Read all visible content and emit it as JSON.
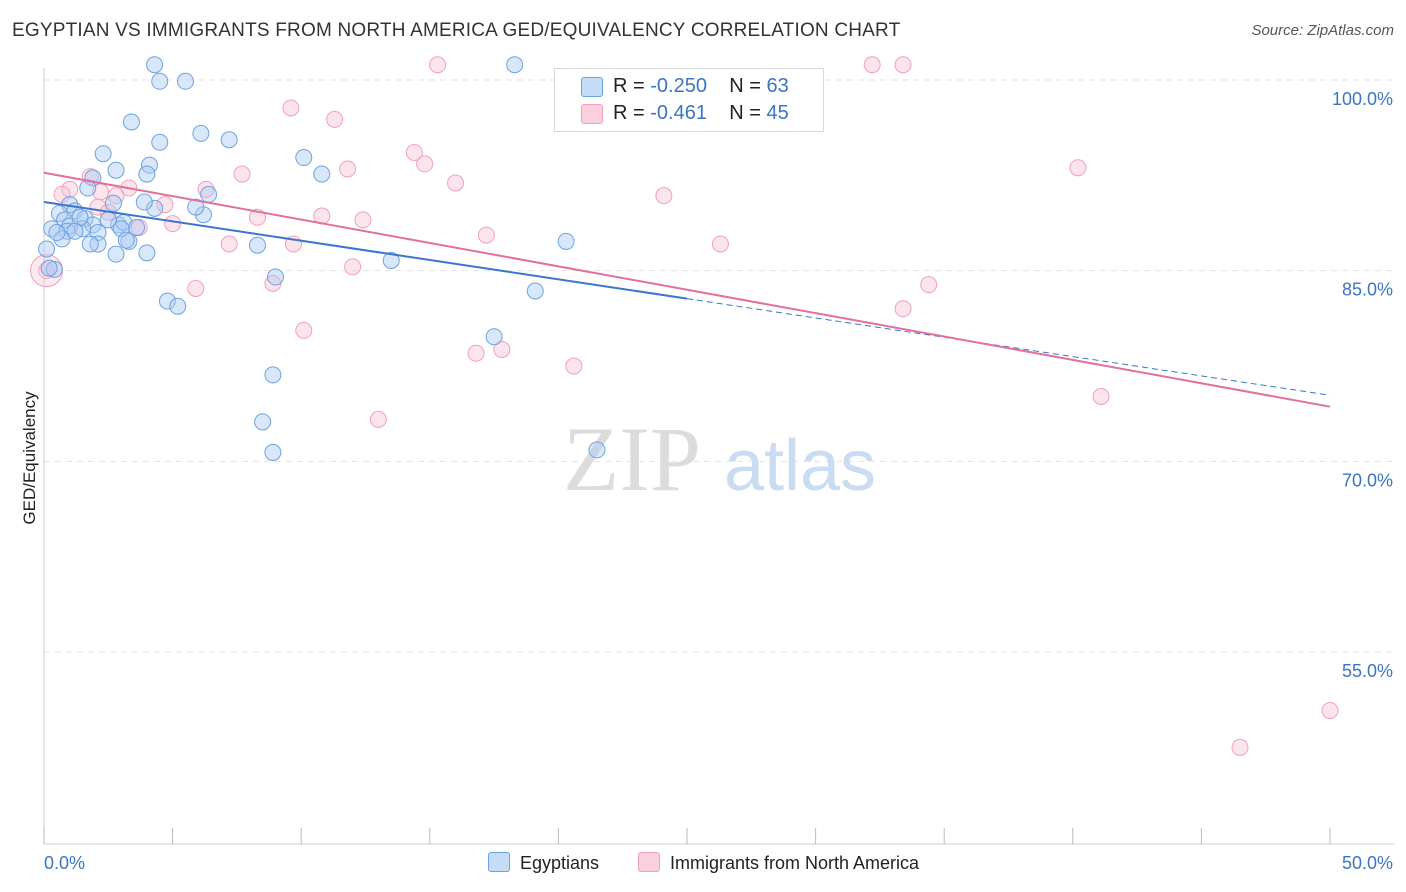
{
  "title": "EGYPTIAN VS IMMIGRANTS FROM NORTH AMERICA GED/EQUIVALENCY CORRELATION CHART",
  "source": "Source: ZipAtlas.com",
  "watermark": {
    "zip": "ZIP",
    "atlas": "atlas"
  },
  "legend": {
    "row1": {
      "r_label": "R =",
      "r_value": "-0.250",
      "n_label": "N =",
      "n_value": "63"
    },
    "row2": {
      "r_label": "R =",
      "r_value": "-0.461",
      "n_label": "N =",
      "n_value": "45"
    }
  },
  "colors": {
    "blue": "#6ea3e0",
    "pink": "#f0a0bb",
    "blue_line": "#3a75cf",
    "pink_line": "#e2709a",
    "axis_text": "#3a75c4"
  },
  "chart_data": {
    "type": "scatter",
    "title": "EGYPTIAN VS IMMIGRANTS FROM NORTH AMERICA GED/EQUIVALENCY CORRELATION CHART",
    "xlabel": "",
    "ylabel": "GED/Equivalency",
    "xlim": [
      0,
      50
    ],
    "ylim": [
      40,
      102
    ],
    "x_tick_labels": [
      "0.0%",
      "50.0%"
    ],
    "y_ticks": [
      100,
      85,
      70,
      55
    ],
    "y_tick_labels": [
      "100.0%",
      "85.0%",
      "70.0%",
      "55.0%"
    ],
    "series": [
      {
        "name": "Egyptians",
        "color": "#6ea3e0",
        "r": -0.25,
        "n": 63,
        "trend": {
          "x": [
            0,
            25
          ],
          "y": [
            90.4,
            82.8
          ],
          "dashed_to": [
            50,
            75.2
          ]
        },
        "points": [
          [
            4.3,
            101.2
          ],
          [
            4.5,
            99.9
          ],
          [
            5.5,
            99.9
          ],
          [
            18.3,
            101.2
          ],
          [
            3.4,
            96.7
          ],
          [
            6.1,
            95.8
          ],
          [
            7.2,
            95.3
          ],
          [
            4.5,
            95.1
          ],
          [
            2.3,
            94.2
          ],
          [
            10.1,
            93.9
          ],
          [
            4.1,
            93.3
          ],
          [
            2.8,
            92.9
          ],
          [
            4.0,
            92.6
          ],
          [
            10.8,
            92.6
          ],
          [
            1.9,
            92.3
          ],
          [
            1.7,
            91.5
          ],
          [
            6.4,
            91.0
          ],
          [
            2.7,
            90.3
          ],
          [
            1.0,
            90.2
          ],
          [
            4.3,
            89.9
          ],
          [
            0.6,
            89.5
          ],
          [
            1.2,
            89.7
          ],
          [
            6.2,
            89.4
          ],
          [
            1.6,
            89.1
          ],
          [
            0.8,
            89.0
          ],
          [
            2.9,
            88.6
          ],
          [
            3.1,
            88.8
          ],
          [
            1.9,
            88.6
          ],
          [
            3.6,
            88.4
          ],
          [
            0.3,
            88.3
          ],
          [
            1.0,
            88.5
          ],
          [
            0.9,
            88.1
          ],
          [
            3.0,
            88.3
          ],
          [
            2.1,
            88.0
          ],
          [
            1.5,
            88.3
          ],
          [
            0.7,
            87.5
          ],
          [
            3.3,
            87.3
          ],
          [
            2.1,
            87.1
          ],
          [
            1.8,
            87.1
          ],
          [
            3.2,
            87.4
          ],
          [
            8.3,
            87.0
          ],
          [
            20.3,
            87.3
          ],
          [
            0.1,
            86.7
          ],
          [
            4.0,
            86.4
          ],
          [
            2.8,
            86.3
          ],
          [
            13.5,
            85.8
          ],
          [
            0.4,
            85.1
          ],
          [
            9.0,
            84.5
          ],
          [
            19.1,
            83.4
          ],
          [
            4.8,
            82.6
          ],
          [
            5.2,
            82.2
          ],
          [
            17.5,
            79.8
          ],
          [
            8.9,
            76.8
          ],
          [
            8.5,
            73.1
          ],
          [
            8.9,
            70.7
          ],
          [
            21.5,
            70.9
          ],
          [
            0.2,
            85.2
          ],
          [
            1.4,
            89.2
          ],
          [
            2.5,
            89.0
          ],
          [
            3.9,
            90.4
          ],
          [
            5.9,
            90.0
          ],
          [
            1.2,
            88.1
          ],
          [
            0.5,
            88.0
          ]
        ]
      },
      {
        "name": "Immigrants from North America",
        "color": "#f0a0bb",
        "r": -0.461,
        "n": 45,
        "trend": {
          "x": [
            0,
            50
          ],
          "y": [
            92.7,
            74.3
          ]
        },
        "points": [
          [
            0.1,
            85.0
          ],
          [
            15.3,
            101.2
          ],
          [
            32.2,
            101.2
          ],
          [
            33.4,
            101.2
          ],
          [
            9.6,
            97.8
          ],
          [
            11.3,
            96.9
          ],
          [
            14.4,
            94.3
          ],
          [
            14.8,
            93.4
          ],
          [
            11.8,
            93.0
          ],
          [
            40.2,
            93.1
          ],
          [
            7.7,
            92.6
          ],
          [
            1.8,
            92.4
          ],
          [
            16.0,
            91.9
          ],
          [
            1.0,
            91.4
          ],
          [
            2.2,
            91.2
          ],
          [
            6.3,
            91.4
          ],
          [
            3.3,
            91.5
          ],
          [
            2.8,
            90.9
          ],
          [
            24.1,
            90.9
          ],
          [
            2.1,
            90.0
          ],
          [
            4.7,
            90.2
          ],
          [
            0.7,
            91.0
          ],
          [
            5.0,
            88.7
          ],
          [
            8.3,
            89.2
          ],
          [
            10.8,
            89.3
          ],
          [
            12.4,
            89.0
          ],
          [
            17.2,
            87.8
          ],
          [
            7.2,
            87.1
          ],
          [
            9.7,
            87.1
          ],
          [
            26.3,
            87.1
          ],
          [
            3.7,
            88.4
          ],
          [
            12.0,
            85.3
          ],
          [
            8.9,
            84.0
          ],
          [
            5.9,
            83.6
          ],
          [
            34.4,
            83.9
          ],
          [
            33.4,
            82.0
          ],
          [
            10.1,
            80.3
          ],
          [
            17.8,
            78.8
          ],
          [
            16.8,
            78.5
          ],
          [
            20.6,
            77.5
          ],
          [
            13.0,
            73.3
          ],
          [
            41.1,
            75.1
          ],
          [
            50.0,
            50.4
          ],
          [
            46.5,
            47.5
          ],
          [
            2.5,
            89.6
          ]
        ]
      }
    ]
  },
  "bottom_legend": {
    "egyptians": "Egyptians",
    "immigrants": "Immigrants from North America"
  }
}
